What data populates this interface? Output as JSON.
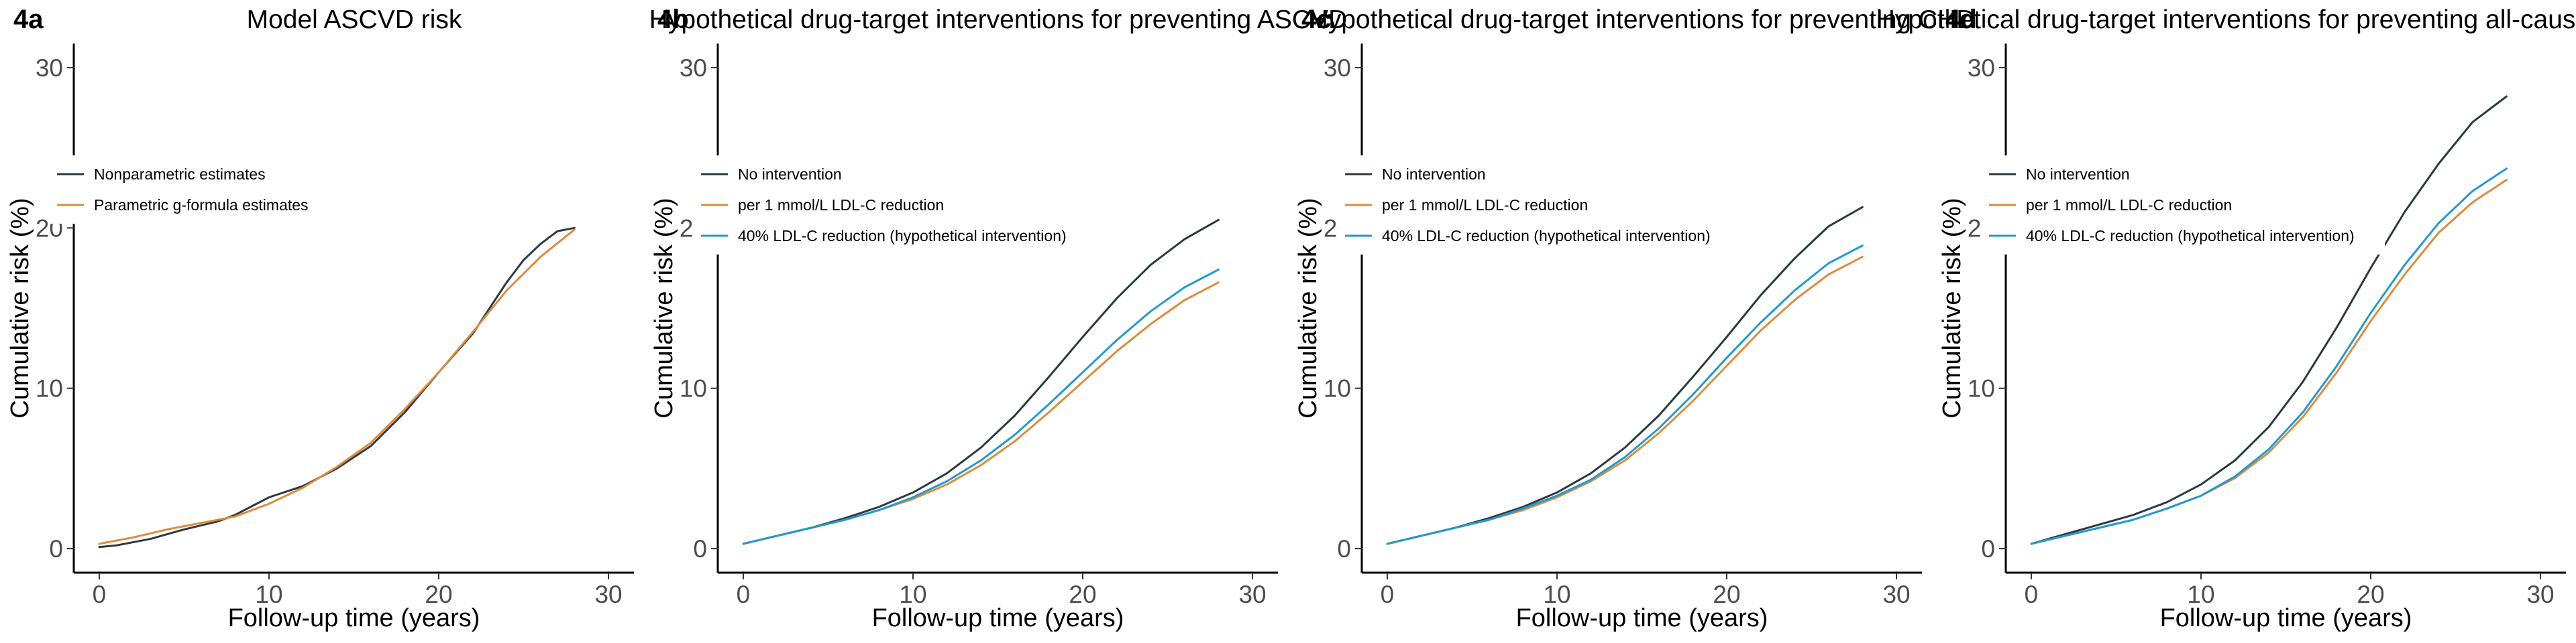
{
  "colors": {
    "dark": "#2b3a42",
    "orange": "#e08a3c",
    "blue": "#1f9bd1"
  },
  "chart_data": [
    {
      "type": "line",
      "tag": "4a",
      "title": "Model ASCVD risk",
      "xlabel": "Follow-up time (years)",
      "ylabel": "Cumulative risk (%)",
      "xlim": [
        -1.5,
        31.5
      ],
      "ylim": [
        -1.5,
        31.5
      ],
      "xticks": [
        "0",
        "10",
        "20",
        "30"
      ],
      "yticks": [
        "0",
        "10",
        "20",
        "30"
      ],
      "grid": false,
      "legend_position": "upper-left",
      "series": [
        {
          "name": "Nonparametric estimates",
          "color": "#2b3a42",
          "x": [
            0,
            1,
            3,
            5,
            7,
            8,
            10,
            12,
            14,
            16,
            18,
            20,
            22,
            24,
            25,
            26,
            27,
            28
          ],
          "y": [
            0.1,
            0.2,
            0.6,
            1.2,
            1.7,
            2.1,
            3.2,
            3.9,
            5.0,
            6.4,
            8.5,
            11.0,
            13.4,
            16.6,
            18.0,
            19.0,
            19.8,
            20.0
          ]
        },
        {
          "name": "Parametric g-formula estimates",
          "color": "#e08a3c",
          "x": [
            0,
            2,
            4,
            6,
            8,
            10,
            12,
            14,
            16,
            18,
            20,
            22,
            24,
            26,
            28
          ],
          "y": [
            0.3,
            0.7,
            1.2,
            1.6,
            2.0,
            2.8,
            3.8,
            5.1,
            6.6,
            8.7,
            11.0,
            13.5,
            16.1,
            18.2,
            19.9
          ]
        }
      ]
    },
    {
      "type": "line",
      "tag": "4b",
      "title": "Hypothetical drug-target interventions for preventing ASCVD",
      "xlabel": "Follow-up time (years)",
      "ylabel": "Cumulative risk (%)",
      "xlim": [
        -1.5,
        31.5
      ],
      "ylim": [
        -1.5,
        31.5
      ],
      "xticks": [
        "0",
        "10",
        "20",
        "30"
      ],
      "yticks": [
        "0",
        "10",
        "20",
        "30"
      ],
      "grid": false,
      "legend_position": "upper-left",
      "series": [
        {
          "name": "No intervention",
          "color": "#2b3a42",
          "x": [
            0,
            2,
            4,
            6,
            8,
            10,
            12,
            14,
            16,
            18,
            20,
            22,
            24,
            26,
            28
          ],
          "y": [
            0.3,
            0.8,
            1.3,
            1.9,
            2.6,
            3.5,
            4.7,
            6.3,
            8.3,
            10.7,
            13.2,
            15.6,
            17.7,
            19.3,
            20.5
          ]
        },
        {
          "name": "per 1 mmol/L LDL-C reduction",
          "color": "#e08a3c",
          "x": [
            0,
            2,
            4,
            6,
            8,
            10,
            12,
            14,
            16,
            18,
            20,
            22,
            24,
            26,
            28
          ],
          "y": [
            0.3,
            0.8,
            1.3,
            1.8,
            2.4,
            3.1,
            4.0,
            5.2,
            6.7,
            8.5,
            10.4,
            12.3,
            14.0,
            15.5,
            16.6
          ]
        },
        {
          "name": "40% LDL-C reduction (hypothetical intervention)",
          "color": "#1f9bd1",
          "x": [
            0,
            2,
            4,
            6,
            8,
            10,
            12,
            14,
            16,
            18,
            20,
            22,
            24,
            26,
            28
          ],
          "y": [
            0.3,
            0.8,
            1.3,
            1.8,
            2.4,
            3.2,
            4.2,
            5.5,
            7.1,
            9.0,
            11.0,
            13.0,
            14.8,
            16.3,
            17.4
          ]
        }
      ]
    },
    {
      "type": "line",
      "tag": "4c",
      "title": "Hypothetical drug-target interventions for preventing CHD",
      "xlabel": "Follow-up time (years)",
      "ylabel": "Cumulative risk (%)",
      "xlim": [
        -1.5,
        31.5
      ],
      "ylim": [
        -1.5,
        31.5
      ],
      "xticks": [
        "0",
        "10",
        "20",
        "30"
      ],
      "yticks": [
        "0",
        "10",
        "20",
        "30"
      ],
      "grid": false,
      "legend_position": "upper-left",
      "series": [
        {
          "name": "No intervention",
          "color": "#2b3a42",
          "x": [
            0,
            2,
            4,
            6,
            8,
            10,
            12,
            14,
            16,
            18,
            20,
            22,
            24,
            26,
            28
          ],
          "y": [
            0.3,
            0.8,
            1.3,
            1.9,
            2.6,
            3.5,
            4.7,
            6.3,
            8.3,
            10.7,
            13.2,
            15.8,
            18.1,
            20.1,
            21.3
          ]
        },
        {
          "name": "per 1 mmol/L LDL-C reduction",
          "color": "#e08a3c",
          "x": [
            0,
            2,
            4,
            6,
            8,
            10,
            12,
            14,
            16,
            18,
            20,
            22,
            24,
            26,
            28
          ],
          "y": [
            0.3,
            0.8,
            1.3,
            1.8,
            2.4,
            3.2,
            4.2,
            5.5,
            7.2,
            9.2,
            11.4,
            13.6,
            15.5,
            17.1,
            18.2
          ]
        },
        {
          "name": "40% LDL-C reduction (hypothetical intervention)",
          "color": "#1f9bd1",
          "x": [
            0,
            2,
            4,
            6,
            8,
            10,
            12,
            14,
            16,
            18,
            20,
            22,
            24,
            26,
            28
          ],
          "y": [
            0.3,
            0.8,
            1.3,
            1.8,
            2.5,
            3.3,
            4.3,
            5.7,
            7.5,
            9.6,
            11.9,
            14.1,
            16.1,
            17.8,
            18.9
          ]
        }
      ]
    },
    {
      "type": "line",
      "tag": "4d",
      "title": "Hypothetical drug-target interventions for preventing all-cause mortality",
      "xlabel": "Follow-up time (years)",
      "ylabel": "Cumulative risk (%)",
      "xlim": [
        -1.5,
        31.5
      ],
      "ylim": [
        -1.5,
        31.5
      ],
      "xticks": [
        "0",
        "10",
        "20",
        "30"
      ],
      "yticks": [
        "0",
        "10",
        "20",
        "30"
      ],
      "grid": false,
      "legend_position": "upper-left",
      "series": [
        {
          "name": "No intervention",
          "color": "#2b3a42",
          "x": [
            0,
            2,
            4,
            6,
            8,
            10,
            12,
            14,
            16,
            18,
            20,
            22,
            24,
            26,
            28
          ],
          "y": [
            0.3,
            0.9,
            1.5,
            2.1,
            2.9,
            4.0,
            5.5,
            7.6,
            10.4,
            13.8,
            17.5,
            21.0,
            24.0,
            26.6,
            28.2
          ]
        },
        {
          "name": "per 1 mmol/L LDL-C reduction",
          "color": "#e08a3c",
          "x": [
            0,
            2,
            4,
            6,
            8,
            10,
            12,
            14,
            16,
            18,
            20,
            22,
            24,
            26,
            28
          ],
          "y": [
            0.3,
            0.8,
            1.3,
            1.8,
            2.5,
            3.3,
            4.4,
            6.0,
            8.2,
            11.0,
            14.2,
            17.1,
            19.7,
            21.6,
            23.0
          ]
        },
        {
          "name": "40% LDL-C reduction (hypothetical intervention)",
          "color": "#1f9bd1",
          "x": [
            0,
            2,
            4,
            6,
            8,
            10,
            12,
            14,
            16,
            18,
            20,
            22,
            24,
            26,
            28
          ],
          "y": [
            0.3,
            0.8,
            1.3,
            1.8,
            2.5,
            3.3,
            4.5,
            6.2,
            8.5,
            11.4,
            14.7,
            17.7,
            20.3,
            22.3,
            23.7
          ]
        }
      ]
    }
  ]
}
